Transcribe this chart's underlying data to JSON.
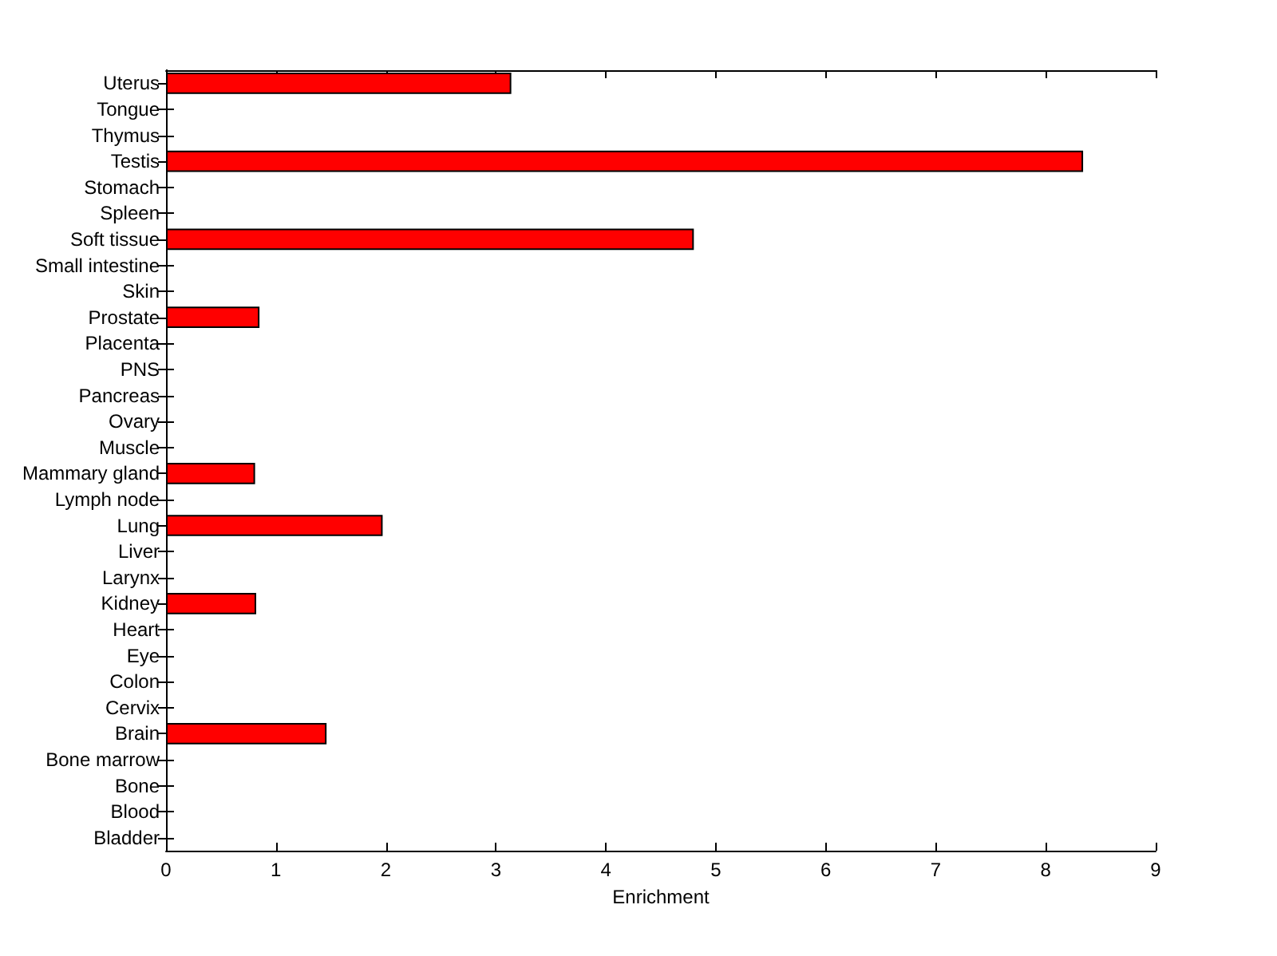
{
  "chart_data": {
    "type": "bar",
    "orientation": "horizontal",
    "xlabel": "Enrichment",
    "categories": [
      "Uterus",
      "Tongue",
      "Thymus",
      "Testis",
      "Stomach",
      "Spleen",
      "Soft tissue",
      "Small intestine",
      "Skin",
      "Prostate",
      "Placenta",
      "PNS",
      "Pancreas",
      "Ovary",
      "Muscle",
      "Mammary gland",
      "Lymph node",
      "Lung",
      "Liver",
      "Larynx",
      "Kidney",
      "Heart",
      "Eye",
      "Colon",
      "Cervix",
      "Brain",
      "Bone marrow",
      "Bone",
      "Blood",
      "Bladder"
    ],
    "values": [
      3.14,
      0,
      0,
      8.34,
      0,
      0,
      4.8,
      0,
      0,
      0.85,
      0,
      0,
      0,
      0,
      0,
      0.81,
      0,
      1.97,
      0,
      0,
      0.82,
      0,
      0,
      0,
      0,
      1.46,
      0,
      0,
      0,
      0
    ],
    "color": "#ff0000",
    "xlim": [
      0,
      9
    ],
    "xticks": [
      0,
      1,
      2,
      3,
      4,
      5,
      6,
      7,
      8,
      9
    ],
    "grid": false
  }
}
